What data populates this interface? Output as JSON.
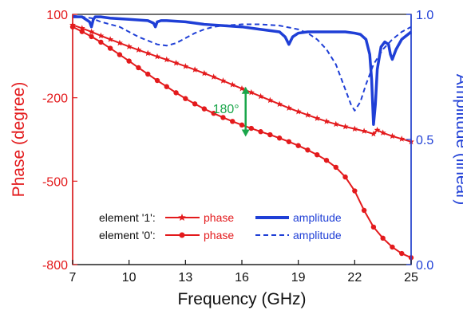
{
  "chart_data": {
    "type": "line",
    "xlabel": "Frequency (GHz)",
    "ylabel_left": "Phase (degree)",
    "ylabel_right": "Amplitude (linear)",
    "xlim": [
      7,
      25
    ],
    "ylim_left": [
      -800,
      100
    ],
    "ylim_right": [
      0.0,
      1.0
    ],
    "xticks": [
      "7",
      "10",
      "13",
      "16",
      "19",
      "22",
      "25"
    ],
    "yticks_left": [
      "100",
      "-200",
      "-500",
      "-800"
    ],
    "yticks_right": [
      "1.0",
      "0.5",
      "0.0"
    ],
    "annotation": {
      "text": "180°",
      "x": 16.2,
      "y_top": -160,
      "y_bottom": -340
    },
    "colors": {
      "phase": "#e31a1c",
      "amplitude": "#1f3fd6",
      "annotation": "#1aa64a"
    },
    "legend": {
      "row1_label": "element '1':",
      "row2_label": "element '0':",
      "phase_label": "phase",
      "amplitude_label": "amplitude"
    },
    "series": [
      {
        "name": "element '1' phase",
        "axis": "left",
        "style": "solid-star",
        "x": [
          7.0,
          7.5,
          8.0,
          8.5,
          9.0,
          9.5,
          10.0,
          10.5,
          11.0,
          11.5,
          12.0,
          12.5,
          13.0,
          13.5,
          14.0,
          14.5,
          15.0,
          15.5,
          16.0,
          16.5,
          17.0,
          17.5,
          18.0,
          18.5,
          19.0,
          19.5,
          20.0,
          20.5,
          21.0,
          21.5,
          22.0,
          22.5,
          23.0,
          23.2,
          23.5,
          24.0,
          24.5,
          25.0
        ],
        "y": [
          62,
          50,
          37,
          23,
          10,
          -3,
          -16,
          -28,
          -40,
          -52,
          -63,
          -75,
          -87,
          -99,
          -112,
          -125,
          -139,
          -153,
          -167,
          -181,
          -195,
          -209,
          -223,
          -237,
          -250,
          -262,
          -274,
          -285,
          -295,
          -304,
          -312,
          -320,
          -330,
          -316,
          -326,
          -338,
          -348,
          -358
        ]
      },
      {
        "name": "element '0' phase",
        "axis": "left",
        "style": "solid-dot",
        "x": [
          7.0,
          7.5,
          8.0,
          8.5,
          9.0,
          9.5,
          10.0,
          10.5,
          11.0,
          11.5,
          12.0,
          12.5,
          13.0,
          13.5,
          14.0,
          14.5,
          15.0,
          15.5,
          16.0,
          16.5,
          17.0,
          17.5,
          18.0,
          18.5,
          19.0,
          19.5,
          20.0,
          20.5,
          21.0,
          21.5,
          22.0,
          22.5,
          23.0,
          23.5,
          24.0,
          24.5,
          25.0
        ],
        "y": [
          55,
          38,
          20,
          0,
          -22,
          -45,
          -68,
          -92,
          -115,
          -138,
          -160,
          -182,
          -203,
          -222,
          -240,
          -256,
          -271,
          -285,
          -298,
          -310,
          -322,
          -333,
          -345,
          -358,
          -372,
          -388,
          -405,
          -425,
          -450,
          -485,
          -535,
          -605,
          -665,
          -705,
          -737,
          -760,
          -775
        ]
      },
      {
        "name": "element '1' amplitude",
        "axis": "right",
        "style": "solid-thick",
        "x": [
          7.0,
          7.5,
          7.9,
          8.0,
          8.1,
          8.2,
          8.5,
          9.0,
          10.0,
          11.0,
          11.3,
          11.4,
          11.5,
          11.7,
          12.0,
          13.0,
          14.0,
          15.0,
          16.0,
          17.0,
          18.0,
          18.3,
          18.5,
          18.7,
          19.0,
          19.5,
          20.0,
          21.0,
          21.5,
          22.0,
          22.3,
          22.6,
          22.8,
          22.9,
          23.0,
          23.1,
          23.2,
          23.4,
          23.6,
          23.8,
          23.9,
          24.0,
          24.2,
          24.5,
          25.0
        ],
        "y": [
          0.99,
          0.99,
          0.97,
          0.95,
          0.98,
          0.99,
          0.99,
          0.985,
          0.98,
          0.975,
          0.965,
          0.95,
          0.97,
          0.975,
          0.975,
          0.97,
          0.96,
          0.955,
          0.95,
          0.94,
          0.93,
          0.91,
          0.88,
          0.91,
          0.925,
          0.93,
          0.93,
          0.93,
          0.93,
          0.925,
          0.92,
          0.9,
          0.84,
          0.74,
          0.56,
          0.64,
          0.78,
          0.87,
          0.89,
          0.88,
          0.84,
          0.82,
          0.86,
          0.9,
          0.93
        ]
      },
      {
        "name": "element '0' amplitude",
        "axis": "right",
        "style": "dashed",
        "x": [
          7.0,
          7.5,
          8.0,
          8.5,
          9.0,
          9.5,
          10.0,
          10.5,
          11.0,
          11.5,
          12.0,
          12.5,
          13.0,
          13.5,
          14.0,
          14.5,
          15.0,
          16.0,
          17.0,
          18.0,
          19.0,
          19.5,
          20.0,
          20.5,
          21.0,
          21.5,
          21.8,
          22.0,
          22.3,
          22.6,
          23.0,
          23.5,
          24.0,
          24.5,
          25.0
        ],
        "y": [
          0.995,
          0.99,
          0.985,
          0.97,
          0.96,
          0.95,
          0.93,
          0.91,
          0.895,
          0.88,
          0.875,
          0.885,
          0.905,
          0.925,
          0.94,
          0.95,
          0.955,
          0.96,
          0.96,
          0.955,
          0.94,
          0.925,
          0.9,
          0.86,
          0.8,
          0.7,
          0.64,
          0.615,
          0.65,
          0.72,
          0.8,
          0.86,
          0.9,
          0.93,
          0.95
        ]
      }
    ]
  }
}
